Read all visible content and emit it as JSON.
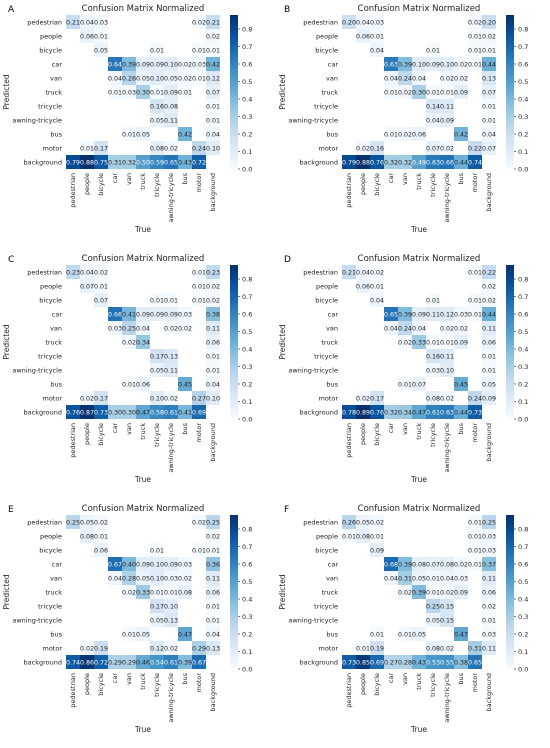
{
  "chart_data": [
    {
      "panel": "A",
      "type": "heatmap",
      "title": "Confusion Matrix Normalized",
      "xlabel": "True",
      "ylabel": "Predicted",
      "x_categories": [
        "pedestrian",
        "people",
        "bicycle",
        "car",
        "van",
        "truck",
        "tricycle",
        "awning-tricycle",
        "bus",
        "motor",
        "background"
      ],
      "y_categories": [
        "pedestrian",
        "people",
        "bicycle",
        "car",
        "van",
        "truck",
        "tricycle",
        "awning-tricycle",
        "bus",
        "motor",
        "background"
      ],
      "colorbar_ticks": [
        0.0,
        0.1,
        0.2,
        0.3,
        0.4,
        0.5,
        0.6,
        0.7,
        0.8
      ],
      "vmax": 0.88,
      "values": [
        [
          0.21,
          0.04,
          0.03,
          null,
          null,
          null,
          null,
          null,
          null,
          0.02,
          0.21
        ],
        [
          null,
          0.06,
          0.01,
          null,
          null,
          null,
          null,
          null,
          null,
          null,
          0.02
        ],
        [
          null,
          null,
          0.05,
          null,
          null,
          null,
          0.01,
          null,
          null,
          0.01,
          0.01
        ],
        [
          null,
          null,
          null,
          0.64,
          0.39,
          0.09,
          0.09,
          0.1,
          0.02,
          0.03,
          0.42
        ],
        [
          null,
          null,
          null,
          0.04,
          0.26,
          0.05,
          0.1,
          0.05,
          0.02,
          0.01,
          0.12
        ],
        [
          null,
          null,
          null,
          0.01,
          0.03,
          0.3,
          0.01,
          0.09,
          0.01,
          null,
          0.07
        ],
        [
          null,
          null,
          null,
          null,
          null,
          null,
          0.16,
          0.08,
          null,
          null,
          0.01
        ],
        [
          null,
          null,
          null,
          null,
          null,
          null,
          0.05,
          0.11,
          null,
          null,
          0.01
        ],
        [
          null,
          null,
          null,
          null,
          0.01,
          0.05,
          null,
          null,
          0.42,
          null,
          0.04
        ],
        [
          null,
          0.01,
          0.17,
          null,
          null,
          null,
          0.08,
          0.02,
          null,
          0.24,
          0.1
        ],
        [
          0.79,
          0.88,
          0.75,
          0.31,
          0.32,
          0.5,
          0.59,
          0.65,
          0.43,
          0.72,
          null
        ]
      ]
    },
    {
      "panel": "B",
      "type": "heatmap",
      "title": "Confusion Matrix Normalized",
      "xlabel": "True",
      "ylabel": "Predicted",
      "x_categories": [
        "pedestrian",
        "people",
        "bicycle",
        "car",
        "van",
        "truck",
        "tricycle",
        "awning-tricycle",
        "bus",
        "motor",
        "background"
      ],
      "y_categories": [
        "pedestrian",
        "people",
        "bicycle",
        "car",
        "van",
        "truck",
        "tricycle",
        "awning-tricycle",
        "bus",
        "motor",
        "background"
      ],
      "colorbar_ticks": [
        0.0,
        0.1,
        0.2,
        0.3,
        0.4,
        0.5,
        0.6,
        0.7,
        0.8
      ],
      "vmax": 0.88,
      "values": [
        [
          0.2,
          0.04,
          0.03,
          null,
          null,
          null,
          null,
          null,
          null,
          0.02,
          0.2
        ],
        [
          null,
          0.06,
          0.01,
          null,
          null,
          null,
          null,
          null,
          null,
          0.01,
          0.02
        ],
        [
          null,
          null,
          0.04,
          null,
          null,
          null,
          0.01,
          null,
          null,
          0.01,
          0.01
        ],
        [
          null,
          null,
          null,
          0.63,
          0.39,
          0.1,
          0.09,
          0.1,
          0.02,
          0.01,
          0.44
        ],
        [
          null,
          null,
          null,
          0.04,
          0.24,
          0.04,
          null,
          0.02,
          0.02,
          null,
          0.13
        ],
        [
          null,
          null,
          null,
          0.01,
          0.02,
          0.3,
          0.01,
          0.01,
          0.09,
          null,
          0.07
        ],
        [
          null,
          null,
          null,
          null,
          null,
          null,
          0.14,
          0.11,
          null,
          null,
          0.01
        ],
        [
          null,
          null,
          null,
          null,
          null,
          null,
          0.04,
          0.09,
          null,
          null,
          0.01
        ],
        [
          null,
          null,
          null,
          0.01,
          0.02,
          0.06,
          null,
          null,
          0.42,
          null,
          0.04
        ],
        [
          null,
          0.02,
          0.16,
          null,
          null,
          null,
          0.07,
          0.02,
          null,
          0.22,
          0.07
        ],
        [
          0.79,
          0.88,
          0.76,
          0.32,
          0.32,
          0.49,
          0.63,
          0.66,
          0.44,
          0.74,
          null
        ]
      ]
    },
    {
      "panel": "C",
      "type": "heatmap",
      "title": "Confusion Matrix Normalized",
      "xlabel": "True",
      "ylabel": "Predicted",
      "x_categories": [
        "pedestrian",
        "people",
        "bicycle",
        "car",
        "van",
        "truck",
        "tricycle",
        "awning-tricycle",
        "bus",
        "motor",
        "background"
      ],
      "y_categories": [
        "pedestrian",
        "people",
        "bicycle",
        "car",
        "van",
        "truck",
        "tricycle",
        "awning-tricycle",
        "bus",
        "motor",
        "background"
      ],
      "colorbar_ticks": [
        0.0,
        0.1,
        0.2,
        0.3,
        0.4,
        0.5,
        0.6,
        0.7,
        0.8
      ],
      "vmax": 0.88,
      "values": [
        [
          0.23,
          0.04,
          0.02,
          null,
          null,
          null,
          null,
          null,
          null,
          0.01,
          0.23
        ],
        [
          null,
          0.07,
          0.01,
          null,
          null,
          null,
          null,
          null,
          null,
          0.01,
          0.02
        ],
        [
          null,
          null,
          0.07,
          null,
          null,
          null,
          0.01,
          0.01,
          null,
          0.01,
          0.02
        ],
        [
          null,
          null,
          null,
          0.66,
          0.41,
          0.09,
          0.09,
          0.09,
          0.03,
          null,
          0.38
        ],
        [
          null,
          null,
          null,
          0.03,
          0.25,
          0.04,
          null,
          0.02,
          0.02,
          null,
          0.11
        ],
        [
          null,
          null,
          null,
          null,
          0.02,
          0.34,
          null,
          null,
          null,
          null,
          0.06
        ],
        [
          null,
          null,
          null,
          null,
          null,
          null,
          0.17,
          0.13,
          null,
          null,
          0.01
        ],
        [
          null,
          null,
          null,
          null,
          null,
          null,
          0.05,
          0.11,
          null,
          null,
          0.01
        ],
        [
          null,
          null,
          null,
          null,
          0.01,
          0.06,
          null,
          null,
          0.45,
          null,
          0.04
        ],
        [
          null,
          0.02,
          0.17,
          null,
          null,
          null,
          0.1,
          0.02,
          null,
          0.27,
          0.1
        ],
        [
          0.76,
          0.87,
          0.73,
          0.3,
          0.3,
          0.47,
          0.58,
          0.61,
          0.41,
          0.69,
          null
        ]
      ]
    },
    {
      "panel": "D",
      "type": "heatmap",
      "title": "Confusion Matrix Normalized",
      "xlabel": "True",
      "ylabel": "Predicted",
      "x_categories": [
        "pedestrian",
        "people",
        "bicycle",
        "car",
        "van",
        "truck",
        "tricycle",
        "awning-tricycle",
        "bus",
        "motor",
        "background"
      ],
      "y_categories": [
        "pedestrian",
        "people",
        "bicycle",
        "car",
        "van",
        "truck",
        "tricycle",
        "awning-tricycle",
        "bus",
        "motor",
        "background"
      ],
      "colorbar_ticks": [
        0.0,
        0.1,
        0.2,
        0.3,
        0.4,
        0.5,
        0.6,
        0.7,
        0.8
      ],
      "vmax": 0.88,
      "values": [
        [
          0.21,
          0.04,
          0.02,
          null,
          null,
          null,
          null,
          null,
          null,
          0.01,
          0.22
        ],
        [
          null,
          0.06,
          0.01,
          null,
          null,
          null,
          null,
          null,
          null,
          null,
          0.02
        ],
        [
          null,
          null,
          0.04,
          null,
          null,
          null,
          0.01,
          null,
          null,
          0.01,
          0.02
        ],
        [
          null,
          null,
          null,
          0.65,
          0.39,
          0.09,
          0.11,
          0.12,
          0.03,
          0.01,
          0.44
        ],
        [
          null,
          null,
          null,
          0.04,
          0.24,
          0.04,
          null,
          0.02,
          0.02,
          null,
          0.11
        ],
        [
          null,
          null,
          null,
          null,
          0.02,
          0.33,
          0.01,
          0.01,
          0.09,
          null,
          0.06
        ],
        [
          null,
          null,
          null,
          null,
          null,
          null,
          0.16,
          0.11,
          null,
          null,
          0.01
        ],
        [
          null,
          null,
          null,
          null,
          null,
          null,
          0.03,
          0.1,
          null,
          null,
          0.01
        ],
        [
          null,
          null,
          null,
          null,
          0.01,
          0.07,
          null,
          null,
          0.45,
          null,
          0.05
        ],
        [
          null,
          0.02,
          0.17,
          null,
          null,
          null,
          0.08,
          0.02,
          null,
          0.24,
          0.09
        ],
        [
          0.78,
          0.89,
          0.76,
          0.32,
          0.34,
          0.47,
          0.61,
          0.63,
          0.44,
          0.73,
          null
        ]
      ]
    },
    {
      "panel": "E",
      "type": "heatmap",
      "title": "Confusion Matrix Normalized",
      "xlabel": "True",
      "ylabel": "Predicted",
      "x_categories": [
        "pedestrian",
        "people",
        "bicycle",
        "car",
        "van",
        "truck",
        "tricycle",
        "awning-tricycle",
        "bus",
        "motor",
        "background"
      ],
      "y_categories": [
        "pedestrian",
        "people",
        "bicycle",
        "car",
        "van",
        "truck",
        "tricycle",
        "awning-tricycle",
        "bus",
        "motor",
        "background"
      ],
      "colorbar_ticks": [
        0.0,
        0.1,
        0.2,
        0.3,
        0.4,
        0.5,
        0.6,
        0.7,
        0.8
      ],
      "vmax": 0.88,
      "values": [
        [
          0.25,
          0.05,
          0.02,
          null,
          null,
          null,
          null,
          null,
          null,
          0.02,
          0.25
        ],
        [
          null,
          0.08,
          0.01,
          null,
          null,
          null,
          null,
          null,
          null,
          null,
          0.02
        ],
        [
          null,
          null,
          0.06,
          null,
          null,
          null,
          0.01,
          null,
          null,
          0.01,
          0.01
        ],
        [
          null,
          null,
          null,
          0.67,
          0.4,
          0.09,
          0.1,
          0.09,
          0.03,
          null,
          0.36
        ],
        [
          null,
          null,
          null,
          0.04,
          0.28,
          0.05,
          0.1,
          0.03,
          0.02,
          null,
          0.11
        ],
        [
          null,
          null,
          null,
          null,
          0.02,
          0.33,
          0.01,
          0.01,
          0.08,
          null,
          0.06
        ],
        [
          null,
          null,
          null,
          null,
          null,
          null,
          0.17,
          0.1,
          null,
          null,
          0.01
        ],
        [
          null,
          null,
          null,
          null,
          null,
          null,
          0.05,
          0.13,
          null,
          null,
          0.01
        ],
        [
          null,
          null,
          null,
          null,
          0.01,
          0.05,
          null,
          null,
          0.47,
          null,
          0.04
        ],
        [
          null,
          0.02,
          0.19,
          null,
          null,
          null,
          0.12,
          0.02,
          null,
          0.29,
          0.13
        ],
        [
          0.74,
          0.86,
          0.72,
          0.29,
          0.29,
          0.46,
          0.54,
          0.61,
          0.39,
          0.67,
          null
        ]
      ]
    },
    {
      "panel": "F",
      "type": "heatmap",
      "title": "Confusion Matrix Normalized",
      "xlabel": "True",
      "ylabel": "Predicted",
      "x_categories": [
        "pedestrian",
        "people",
        "bicycle",
        "car",
        "van",
        "truck",
        "tricycle",
        "awning-tricycle",
        "bus",
        "motor",
        "background"
      ],
      "y_categories": [
        "pedestrian",
        "people",
        "bicycle",
        "car",
        "van",
        "truck",
        "tricycle",
        "awning-tricycle",
        "bus",
        "motor",
        "background"
      ],
      "colorbar_ticks": [
        0.0,
        0.1,
        0.2,
        0.3,
        0.4,
        0.5,
        0.6,
        0.7,
        0.8
      ],
      "vmax": 0.88,
      "values": [
        [
          0.26,
          0.05,
          0.02,
          null,
          null,
          null,
          null,
          null,
          null,
          0.01,
          0.25
        ],
        [
          0.01,
          0.08,
          0.01,
          null,
          null,
          null,
          null,
          null,
          null,
          0.01,
          0.03
        ],
        [
          null,
          null,
          0.09,
          null,
          null,
          null,
          null,
          null,
          null,
          0.01,
          0.03
        ],
        [
          null,
          null,
          null,
          0.68,
          0.39,
          0.08,
          0.07,
          0.08,
          0.02,
          0.01,
          0.37
        ],
        [
          null,
          null,
          null,
          0.04,
          0.31,
          0.05,
          0.01,
          0.04,
          0.03,
          null,
          0.11
        ],
        [
          null,
          null,
          null,
          null,
          0.02,
          0.39,
          0.01,
          0.02,
          0.09,
          null,
          0.06
        ],
        [
          null,
          null,
          null,
          null,
          null,
          null,
          0.25,
          0.15,
          null,
          null,
          0.02
        ],
        [
          null,
          null,
          null,
          null,
          null,
          null,
          0.05,
          0.15,
          null,
          null,
          0.01
        ],
        [
          null,
          null,
          0.01,
          null,
          0.01,
          0.05,
          null,
          null,
          0.47,
          null,
          0.03
        ],
        [
          null,
          0.01,
          0.19,
          null,
          null,
          null,
          0.08,
          0.02,
          null,
          0.31,
          0.11
        ],
        [
          0.73,
          0.85,
          0.69,
          0.27,
          0.28,
          0.43,
          0.53,
          0.55,
          0.38,
          0.65,
          null
        ]
      ]
    }
  ]
}
